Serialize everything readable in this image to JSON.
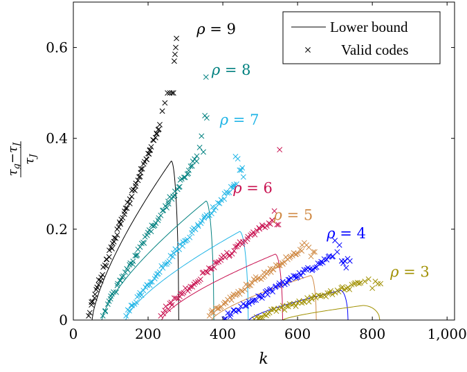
{
  "chart_data": {
    "type": "scatter",
    "title": "",
    "xlabel": "k",
    "ylabel": "(τ_g − τ_J) / τ_J",
    "ylabel_parts": {
      "num_a": "τ",
      "num_a_sub": "g",
      "minus": "−",
      "num_b": "τ",
      "num_b_sub": "J",
      "den": "τ",
      "den_sub": "J"
    },
    "xlim": [
      0,
      1020
    ],
    "ylim": [
      0,
      0.7
    ],
    "xticks": [
      0,
      200,
      400,
      600,
      800,
      1000
    ],
    "xtick_labels": [
      "0",
      "200",
      "400",
      "600",
      "800",
      "1,000"
    ],
    "yticks": [
      0,
      0.2,
      0.4,
      0.6
    ],
    "ytick_labels": [
      "0",
      "0.2",
      "0.4",
      "0.6"
    ],
    "grid": false,
    "legend": {
      "placement": "top-right",
      "entries": [
        {
          "label": "Lower bound",
          "marker": "line",
          "color": "#000000"
        },
        {
          "label": "Valid codes",
          "marker": "cross",
          "color": "#000000"
        }
      ]
    },
    "series": [
      {
        "rho": 9,
        "label_prefix": "ρ",
        "label_eq": " = ",
        "label_value": "9",
        "color": "#000000",
        "label_pos": [
          330,
          0.63
        ],
        "bound": {
          "x0": 50,
          "xpeak": 262,
          "ypeak": 0.35,
          "xend": 282
        },
        "valid": {
          "x0": 42,
          "y0": 0.012,
          "x1": 232,
          "y1": 0.43,
          "n": 70,
          "exp": 0.9,
          "seed": 11
        },
        "outliers": [
          [
            238,
            0.46
          ],
          [
            245,
            0.478
          ],
          [
            252,
            0.5
          ],
          [
            258,
            0.5
          ],
          [
            264,
            0.5
          ],
          [
            268,
            0.5
          ],
          [
            270,
            0.57
          ],
          [
            272,
            0.585
          ],
          [
            274,
            0.6
          ],
          [
            276,
            0.62
          ]
        ]
      },
      {
        "rho": 8,
        "label_prefix": "ρ",
        "label_eq": " = ",
        "label_value": "8",
        "color": "#00807f",
        "label_pos": [
          370,
          0.54
        ],
        "bound": {
          "x0": 76,
          "xpeak": 355,
          "ypeak": 0.262,
          "xend": 376
        },
        "valid": {
          "x0": 80,
          "y0": 0.012,
          "x1": 332,
          "y1": 0.36,
          "n": 70,
          "exp": 0.92,
          "seed": 22
        },
        "outliers": [
          [
            338,
            0.38
          ],
          [
            343,
            0.405
          ],
          [
            348,
            0.37
          ],
          [
            352,
            0.45
          ],
          [
            357,
            0.445
          ],
          [
            355,
            0.535
          ]
        ]
      },
      {
        "rho": 7,
        "label_prefix": "ρ",
        "label_eq": " = ",
        "label_value": "7",
        "color": "#1eb4e6",
        "label_pos": [
          392,
          0.43
        ],
        "bound": {
          "x0": 140,
          "xpeak": 445,
          "ypeak": 0.195,
          "xend": 468
        },
        "valid": {
          "x0": 142,
          "y0": 0.012,
          "x1": 435,
          "y1": 0.3,
          "n": 72,
          "exp": 0.92,
          "seed": 33
        },
        "outliers": [
          [
            428,
            0.29
          ],
          [
            434,
            0.36
          ],
          [
            440,
            0.355
          ],
          [
            445,
            0.33
          ],
          [
            449,
            0.33
          ],
          [
            452,
            0.335
          ],
          [
            455,
            0.315
          ]
        ]
      },
      {
        "rho": 6,
        "label_prefix": "ρ",
        "label_eq": " = ",
        "label_value": "6",
        "color": "#c8104f",
        "label_pos": [
          428,
          0.28
        ],
        "bound": {
          "x0": 236,
          "xpeak": 540,
          "ypeak": 0.145,
          "xend": 560
        },
        "valid": {
          "x0": 235,
          "y0": 0.012,
          "x1": 530,
          "y1": 0.22,
          "n": 68,
          "exp": 0.9,
          "seed": 44
        },
        "outliers": [
          [
            532,
            0.22
          ],
          [
            538,
            0.24
          ],
          [
            545,
            0.21
          ],
          [
            549,
            0.21
          ],
          [
            552,
            0.375
          ]
        ]
      },
      {
        "rho": 5,
        "label_prefix": "ρ",
        "label_eq": " = ",
        "label_value": "5",
        "color": "#d08a45",
        "label_pos": [
          536,
          0.22
        ],
        "bound": {
          "x0": 370,
          "xpeak": 635,
          "ypeak": 0.098,
          "xend": 650
        },
        "valid": {
          "x0": 365,
          "y0": 0.012,
          "x1": 610,
          "y1": 0.155,
          "n": 62,
          "exp": 0.92,
          "seed": 55
        },
        "outliers": [
          [
            612,
            0.165
          ],
          [
            618,
            0.17
          ],
          [
            624,
            0.165
          ],
          [
            630,
            0.16
          ],
          [
            636,
            0.14
          ],
          [
            642,
            0.15
          ],
          [
            646,
            0.15
          ]
        ]
      },
      {
        "rho": 4,
        "label_prefix": "ρ",
        "label_eq": " = ",
        "label_value": "4",
        "color": "#0000ff",
        "label_pos": [
          678,
          0.18
        ],
        "bound": {
          "x0": 470,
          "xpeak": 715,
          "ypeak": 0.065,
          "xend": 735
        },
        "valid": {
          "x0": 405,
          "y0": 0.005,
          "x1": 695,
          "y1": 0.14,
          "n": 66,
          "exp": 0.95,
          "seed": 66
        },
        "outliers": [
          [
            700,
            0.175
          ],
          [
            706,
            0.15
          ],
          [
            712,
            0.165
          ],
          [
            718,
            0.13
          ],
          [
            722,
            0.125
          ],
          [
            726,
            0.13
          ],
          [
            730,
            0.115
          ],
          [
            734,
            0.135
          ],
          [
            740,
            0.13
          ]
        ]
      },
      {
        "rho": 3,
        "label_prefix": "ρ",
        "label_eq": " = ",
        "label_value": "3",
        "color": "#a09000",
        "label_pos": [
          848,
          0.095
        ],
        "bound": {
          "x0": 560,
          "xpeak": 775,
          "ypeak": 0.032,
          "xend": 820
        },
        "valid": {
          "x0": 485,
          "y0": 0.005,
          "x1": 770,
          "y1": 0.08,
          "n": 58,
          "exp": 0.95,
          "seed": 77
        },
        "outliers": [
          [
            780,
            0.085
          ],
          [
            790,
            0.09
          ],
          [
            800,
            0.07
          ],
          [
            808,
            0.085
          ],
          [
            815,
            0.08
          ],
          [
            822,
            0.08
          ]
        ]
      }
    ]
  }
}
